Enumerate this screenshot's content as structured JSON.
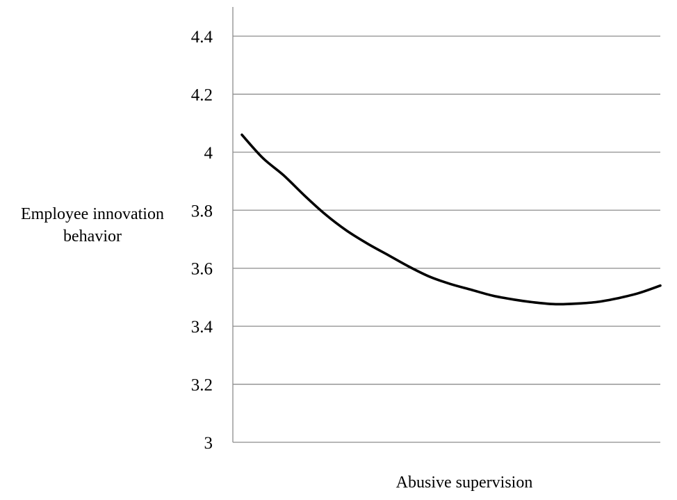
{
  "chart_data": {
    "type": "line",
    "title": "",
    "xlabel": "Abusive supervision",
    "ylabel_lines": [
      "Employee innovation",
      "behavior"
    ],
    "ylim": [
      3,
      4.4
    ],
    "yticks": [
      {
        "value": 3,
        "label": "3"
      },
      {
        "value": 3.2,
        "label": "3.2"
      },
      {
        "value": 3.4,
        "label": "3.4"
      },
      {
        "value": 3.6,
        "label": "3.6"
      },
      {
        "value": 3.8,
        "label": "3.8"
      },
      {
        "value": 4,
        "label": "4"
      },
      {
        "value": 4.2,
        "label": "4.2"
      },
      {
        "value": 4.4,
        "label": "4.4"
      }
    ],
    "xlim": [
      0,
      1
    ],
    "x_tick_labels": [],
    "grid": true,
    "legend": "none",
    "series": [
      {
        "x": [
          0.0,
          0.05,
          0.1,
          0.15,
          0.2,
          0.25,
          0.3,
          0.35,
          0.4,
          0.45,
          0.5,
          0.55,
          0.6,
          0.65,
          0.7,
          0.75,
          0.8,
          0.85,
          0.9,
          0.95,
          1.0
        ],
        "y": [
          4.06,
          3.98,
          3.92,
          3.85,
          3.785,
          3.73,
          3.685,
          3.645,
          3.605,
          3.57,
          3.545,
          3.525,
          3.505,
          3.492,
          3.482,
          3.476,
          3.478,
          3.484,
          3.497,
          3.515,
          3.54
        ],
        "color": "#000000"
      }
    ]
  }
}
